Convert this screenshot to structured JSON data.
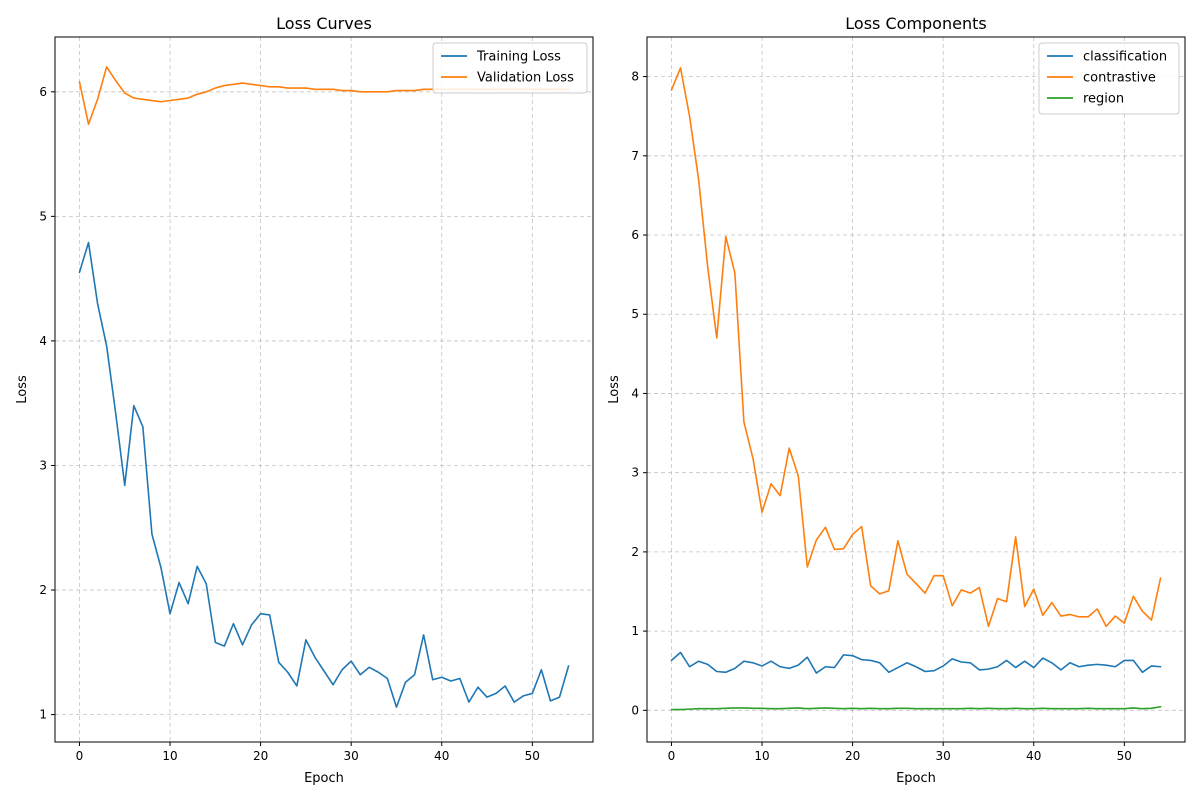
{
  "chart_data": [
    {
      "type": "line",
      "title": "Loss Curves",
      "xlabel": "Epoch",
      "ylabel": "Loss",
      "xlim": [
        -2.7,
        56.7
      ],
      "ylim": [
        0.78,
        6.44
      ],
      "xticks": [
        0,
        10,
        20,
        30,
        40,
        50
      ],
      "yticks": [
        1,
        2,
        3,
        4,
        5,
        6
      ],
      "grid": true,
      "legend": "top-right",
      "series": [
        {
          "name": "Training Loss",
          "color": "#1f77b4",
          "values": [
            4.55,
            4.79,
            4.3,
            3.96,
            3.42,
            2.84,
            3.48,
            3.31,
            2.45,
            2.18,
            1.81,
            2.06,
            1.89,
            2.19,
            2.05,
            1.58,
            1.55,
            1.73,
            1.56,
            1.72,
            1.81,
            1.8,
            1.42,
            1.34,
            1.23,
            1.6,
            1.46,
            1.35,
            1.24,
            1.36,
            1.43,
            1.32,
            1.38,
            1.34,
            1.29,
            1.06,
            1.26,
            1.32,
            1.64,
            1.28,
            1.3,
            1.27,
            1.29,
            1.1,
            1.22,
            1.14,
            1.17,
            1.23,
            1.1,
            1.15,
            1.17,
            1.36,
            1.11,
            1.14,
            1.39
          ]
        },
        {
          "name": "Validation Loss",
          "color": "#ff7f0e",
          "values": [
            6.08,
            5.74,
            5.94,
            6.2,
            6.09,
            5.99,
            5.95,
            5.94,
            5.93,
            5.92,
            5.93,
            5.94,
            5.95,
            5.98,
            6.0,
            6.03,
            6.05,
            6.06,
            6.07,
            6.06,
            6.05,
            6.04,
            6.04,
            6.03,
            6.03,
            6.03,
            6.02,
            6.02,
            6.02,
            6.01,
            6.01,
            6.0,
            6.0,
            6.0,
            6.0,
            6.01,
            6.01,
            6.01,
            6.02,
            6.02,
            6.02,
            6.02,
            6.02,
            6.02,
            6.02,
            6.02,
            6.02,
            6.02,
            6.02,
            6.02,
            6.02,
            6.02,
            6.02,
            6.02,
            6.02
          ]
        }
      ]
    },
    {
      "type": "line",
      "title": "Loss Components",
      "xlabel": "Epoch",
      "ylabel": "Loss",
      "xlim": [
        -2.7,
        56.7
      ],
      "ylim": [
        -0.4,
        8.5
      ],
      "xticks": [
        0,
        10,
        20,
        30,
        40,
        50
      ],
      "yticks": [
        0,
        1,
        2,
        3,
        4,
        5,
        6,
        7,
        8
      ],
      "grid": true,
      "legend": "top-right",
      "series": [
        {
          "name": "classification",
          "color": "#1f77b4",
          "values": [
            0.63,
            0.73,
            0.55,
            0.62,
            0.58,
            0.49,
            0.48,
            0.53,
            0.62,
            0.6,
            0.56,
            0.62,
            0.55,
            0.53,
            0.57,
            0.67,
            0.47,
            0.55,
            0.54,
            0.7,
            0.69,
            0.64,
            0.63,
            0.6,
            0.48,
            0.54,
            0.6,
            0.55,
            0.49,
            0.5,
            0.56,
            0.65,
            0.61,
            0.6,
            0.51,
            0.52,
            0.55,
            0.63,
            0.54,
            0.62,
            0.54,
            0.66,
            0.6,
            0.51,
            0.6,
            0.55,
            0.57,
            0.58,
            0.57,
            0.55,
            0.63,
            0.63,
            0.48,
            0.56,
            0.55
          ]
        },
        {
          "name": "contrastive",
          "color": "#ff7f0e",
          "values": [
            7.83,
            8.11,
            7.5,
            6.7,
            5.6,
            4.7,
            5.98,
            5.52,
            3.64,
            3.18,
            2.5,
            2.86,
            2.71,
            3.31,
            2.96,
            1.81,
            2.15,
            2.31,
            2.03,
            2.04,
            2.22,
            2.32,
            1.57,
            1.47,
            1.51,
            2.14,
            1.72,
            1.6,
            1.48,
            1.7,
            1.7,
            1.32,
            1.52,
            1.48,
            1.55,
            1.06,
            1.41,
            1.37,
            2.19,
            1.31,
            1.53,
            1.2,
            1.36,
            1.19,
            1.21,
            1.18,
            1.18,
            1.28,
            1.06,
            1.19,
            1.1,
            1.44,
            1.25,
            1.14,
            1.67
          ]
        },
        {
          "name": "region",
          "color": "#2ca02c",
          "values": [
            0.01,
            0.01,
            0.015,
            0.02,
            0.02,
            0.02,
            0.025,
            0.03,
            0.03,
            0.025,
            0.025,
            0.02,
            0.02,
            0.025,
            0.03,
            0.02,
            0.025,
            0.03,
            0.025,
            0.02,
            0.025,
            0.02,
            0.025,
            0.02,
            0.02,
            0.025,
            0.025,
            0.02,
            0.02,
            0.02,
            0.02,
            0.02,
            0.02,
            0.025,
            0.02,
            0.025,
            0.02,
            0.02,
            0.025,
            0.02,
            0.02,
            0.025,
            0.02,
            0.02,
            0.02,
            0.02,
            0.025,
            0.02,
            0.02,
            0.02,
            0.02,
            0.03,
            0.02,
            0.025,
            0.045
          ]
        }
      ]
    }
  ]
}
